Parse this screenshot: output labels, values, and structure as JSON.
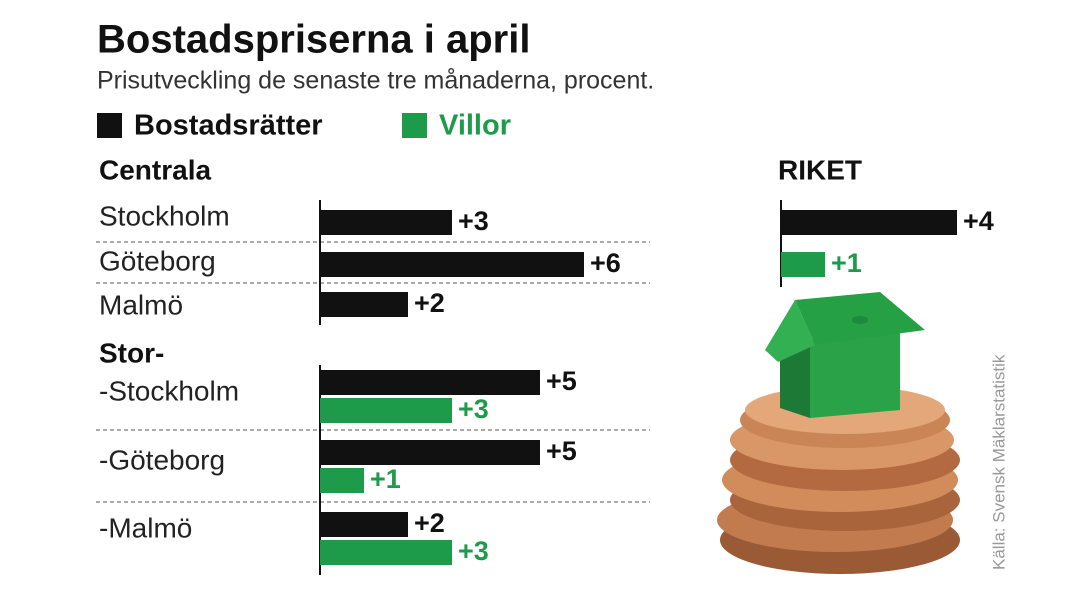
{
  "chart_data": [
    {
      "type": "bar",
      "orientation": "horizontal",
      "title": "Bostadspriserna i april",
      "subtitle": "Prisutveckling de senaste tre månaderna, procent.",
      "source": "Källa: Svensk Mäklarstatistik",
      "groups": [
        {
          "name": "Centrala",
          "categories": [
            "Stockholm",
            "Göteborg",
            "Malmö"
          ]
        },
        {
          "name": "Stor-",
          "categories": [
            "-Stockholm",
            "-Göteborg",
            "-Malmö"
          ]
        }
      ],
      "series": [
        {
          "name": "Bostadsrätter",
          "color": "#111111",
          "values": [
            3,
            6,
            2,
            5,
            5,
            2
          ],
          "value_labels": [
            "+3",
            "+6",
            "+2",
            "+5",
            "+5",
            "+2"
          ]
        },
        {
          "name": "Villor",
          "color": "#1e9b4a",
          "values": [
            null,
            null,
            null,
            3,
            1,
            3
          ],
          "value_labels": [
            null,
            null,
            null,
            "+3",
            "+1",
            "+3"
          ]
        }
      ],
      "xlim": [
        0,
        6
      ]
    },
    {
      "type": "bar",
      "orientation": "horizontal",
      "title": "RIKET",
      "series": [
        {
          "color": "#111111",
          "values": [
            4
          ],
          "value_labels": [
            "+4"
          ]
        },
        {
          "color": "#1e9b4a",
          "values": [
            1
          ],
          "value_labels": [
            "+1"
          ]
        }
      ],
      "xlim": [
        0,
        4
      ]
    }
  ]
}
